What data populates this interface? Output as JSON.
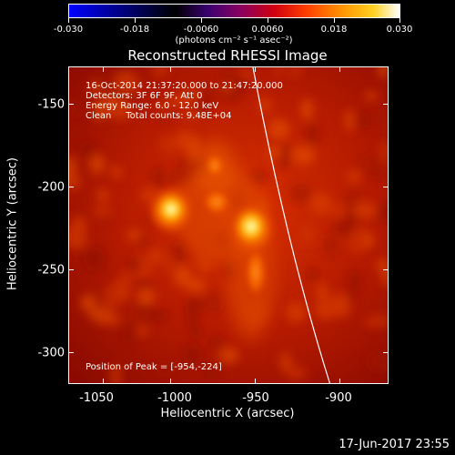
{
  "colorbar": {
    "tick_labels": [
      "-0.030",
      "-0.018",
      "-0.0060",
      "0.0060",
      "0.018",
      "0.030"
    ],
    "range": [
      -0.03,
      0.03
    ],
    "units_label": "(photons cm⁻² s⁻¹ asec⁻²)"
  },
  "title": "Reconstructed RHESSI Image",
  "info": {
    "time_range": "16-Oct-2014 21:37:20.000 to 21:47:20.000",
    "detectors": "Detectors: 3F 6F 9F, Att 0",
    "energy_range": "Energy Range: 6.0 - 12.0 keV",
    "algorithm": "Clean     Total counts: 9.48E+04",
    "peak_position": "Position of Peak = [-954,-224]"
  },
  "x_axis": {
    "title": "Heliocentric X (arcsec)",
    "tick_labels": [
      "-1050",
      "-1000",
      "-950",
      "-900"
    ]
  },
  "y_axis": {
    "title": "Heliocentric Y (arcsec)",
    "tick_labels": [
      "-150",
      "-200",
      "-250",
      "-300"
    ]
  },
  "footer": {
    "date": "17-Jun-2017 23:55"
  }
}
